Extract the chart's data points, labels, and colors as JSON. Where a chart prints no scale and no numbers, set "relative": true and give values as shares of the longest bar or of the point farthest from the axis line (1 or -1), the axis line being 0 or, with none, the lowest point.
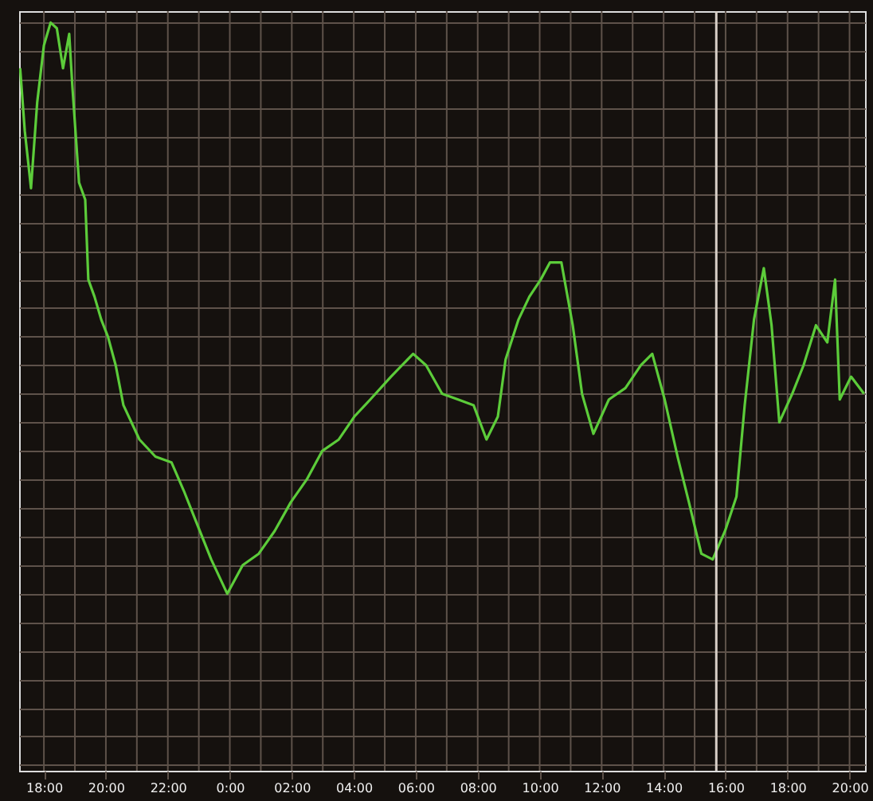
{
  "chart_data": {
    "type": "line",
    "relative": true,
    "x": [
      "2000-01-01T17:14",
      "2000-01-01T17:23",
      "2000-01-01T17:35",
      "2000-01-01T17:47",
      "2000-01-01T18:00",
      "2000-01-01T18:13",
      "2000-01-01T18:25",
      "2000-01-01T18:37",
      "2000-01-01T18:49",
      "2000-01-01T18:55",
      "2000-01-01T19:08",
      "2000-01-01T19:20",
      "2000-01-01T19:26",
      "2000-01-01T19:38",
      "2000-01-01T19:51",
      "2000-01-01T20:04",
      "2000-01-01T20:19",
      "2000-01-01T20:34",
      "2000-01-01T21:05",
      "2000-01-01T21:36",
      "2000-01-01T22:07",
      "2000-01-01T22:31",
      "2000-01-01T22:53",
      "2000-01-01T23:24",
      "2000-01-01T23:55",
      "2000-01-02T00:25",
      "2000-01-02T00:56",
      "2000-01-02T01:27",
      "2000-01-02T01:58",
      "2000-01-02T02:29",
      "2000-01-02T02:59",
      "2000-01-02T03:31",
      "2000-01-02T04:01",
      "2000-01-02T04:32",
      "2000-01-02T05:12",
      "2000-01-02T05:55",
      "2000-01-02T06:20",
      "2000-01-02T06:51",
      "2000-01-02T07:22",
      "2000-01-02T07:52",
      "2000-01-02T08:17",
      "2000-01-02T08:39",
      "2000-01-02T08:54",
      "2000-01-02T09:19",
      "2000-01-02T09:40",
      "2000-01-02T10:02",
      "2000-01-02T10:20",
      "2000-01-02T10:42",
      "2000-01-02T11:04",
      "2000-01-02T11:22",
      "2000-01-02T11:44",
      "2000-01-02T12:14",
      "2000-01-02T12:46",
      "2000-01-02T13:16",
      "2000-01-02T13:38",
      "2000-01-02T14:02",
      "2000-01-02T14:27",
      "2000-01-02T14:49",
      "2000-01-02T15:13",
      "2000-01-02T15:35",
      "2000-01-02T15:59",
      "2000-01-02T16:21",
      "2000-01-02T16:37",
      "2000-01-02T16:55",
      "2000-01-02T17:14",
      "2000-01-02T17:29",
      "2000-01-02T17:44",
      "2000-01-02T18:09",
      "2000-01-02T18:31",
      "2000-01-02T18:55",
      "2000-01-02T19:17",
      "2000-01-02T19:32",
      "2000-01-02T19:41",
      "2000-01-02T20:03",
      "2000-01-02T20:28"
    ],
    "series": [
      {
        "color": "#5ccc3a",
        "values": [
          0.92,
          0.81,
          0.71,
          0.86,
          0.96,
          1.0,
          0.99,
          0.92,
          0.98,
          0.89,
          0.72,
          0.69,
          0.55,
          0.52,
          0.48,
          0.45,
          0.4,
          0.33,
          0.27,
          0.24,
          0.23,
          0.18,
          0.13,
          0.06,
          0.0,
          0.05,
          0.07,
          0.11,
          0.16,
          0.2,
          0.25,
          0.27,
          0.31,
          0.34,
          0.38,
          0.42,
          0.4,
          0.35,
          0.34,
          0.33,
          0.27,
          0.31,
          0.41,
          0.48,
          0.52,
          0.55,
          0.58,
          0.58,
          0.47,
          0.35,
          0.28,
          0.34,
          0.36,
          0.4,
          0.42,
          0.34,
          0.24,
          0.16,
          0.07,
          0.06,
          0.11,
          0.17,
          0.33,
          0.48,
          0.57,
          0.47,
          0.3,
          0.35,
          0.4,
          0.47,
          0.44,
          0.55,
          0.34,
          0.38,
          0.35
        ]
      }
    ],
    "xlim": [
      "2000-01-01T17:12",
      "2000-01-02T20:30"
    ],
    "xticks": [
      {
        "value": "2000-01-01T18:00",
        "label": "18:00"
      },
      {
        "value": "2000-01-01T19:00",
        "label": null
      },
      {
        "value": "2000-01-01T20:00",
        "label": "20:00"
      },
      {
        "value": "2000-01-01T21:00",
        "label": null
      },
      {
        "value": "2000-01-01T22:00",
        "label": "22:00"
      },
      {
        "value": "2000-01-01T23:00",
        "label": null
      },
      {
        "value": "2000-01-02T00:00",
        "label": "0:00"
      },
      {
        "value": "2000-01-02T01:00",
        "label": null
      },
      {
        "value": "2000-01-02T02:00",
        "label": "02:00"
      },
      {
        "value": "2000-01-02T03:00",
        "label": null
      },
      {
        "value": "2000-01-02T04:00",
        "label": "04:00"
      },
      {
        "value": "2000-01-02T05:00",
        "label": null
      },
      {
        "value": "2000-01-02T06:00",
        "label": "06:00"
      },
      {
        "value": "2000-01-02T07:00",
        "label": null
      },
      {
        "value": "2000-01-02T08:00",
        "label": "08:00"
      },
      {
        "value": "2000-01-02T09:00",
        "label": null
      },
      {
        "value": "2000-01-02T10:00",
        "label": "10:00"
      },
      {
        "value": "2000-01-02T11:00",
        "label": null
      },
      {
        "value": "2000-01-02T12:00",
        "label": "12:00"
      },
      {
        "value": "2000-01-02T13:00",
        "label": null
      },
      {
        "value": "2000-01-02T14:00",
        "label": "14:00"
      },
      {
        "value": "2000-01-02T15:00",
        "label": null
      },
      {
        "value": "2000-01-02T16:00",
        "label": "16:00"
      },
      {
        "value": "2000-01-02T17:00",
        "label": null
      },
      {
        "value": "2000-01-02T18:00",
        "label": "18:00"
      },
      {
        "value": "2000-01-02T19:00",
        "label": null
      },
      {
        "value": "2000-01-02T20:00",
        "label": "20:00"
      }
    ],
    "ref_lines": [
      {
        "axis": "x",
        "value": "2000-01-02T15:42",
        "color": "#d8d0c8"
      }
    ],
    "grid": true,
    "legend": false,
    "marker": "none",
    "line_style": "solid"
  }
}
